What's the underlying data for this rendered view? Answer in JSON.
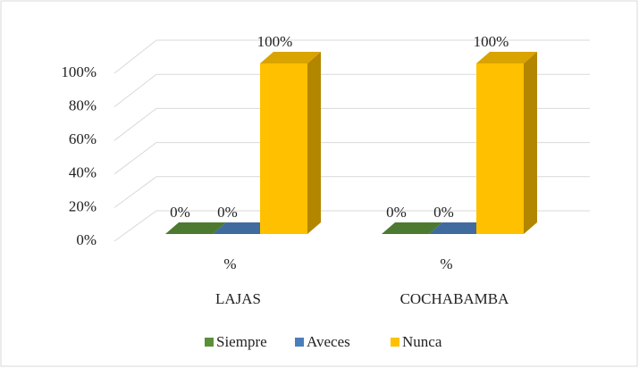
{
  "chart_data": {
    "type": "bar3d",
    "categories": [
      "%",
      "%"
    ],
    "groups": [
      "LAJAS",
      "COCHABAMBA"
    ],
    "series": [
      {
        "name": "Siempre",
        "color": "#5b8f3a",
        "values": [
          0,
          0
        ],
        "value_labels": [
          "0%",
          "0%"
        ]
      },
      {
        "name": "Aveces",
        "color": "#4a7ebb",
        "values": [
          0,
          0
        ],
        "value_labels": [
          "0%",
          "0%"
        ]
      },
      {
        "name": "Nunca",
        "color": "#ffc000",
        "values": [
          100,
          100
        ],
        "value_labels": [
          "100%",
          "100%"
        ]
      }
    ],
    "ylim": [
      0,
      100
    ],
    "yticks": [
      {
        "value": 0,
        "label": "0%"
      },
      {
        "value": 20,
        "label": "20%"
      },
      {
        "value": 40,
        "label": "40%"
      },
      {
        "value": 60,
        "label": "60%"
      },
      {
        "value": 80,
        "label": "80%"
      },
      {
        "value": 100,
        "label": "100%"
      }
    ],
    "grid": true,
    "legend": "bottom"
  }
}
